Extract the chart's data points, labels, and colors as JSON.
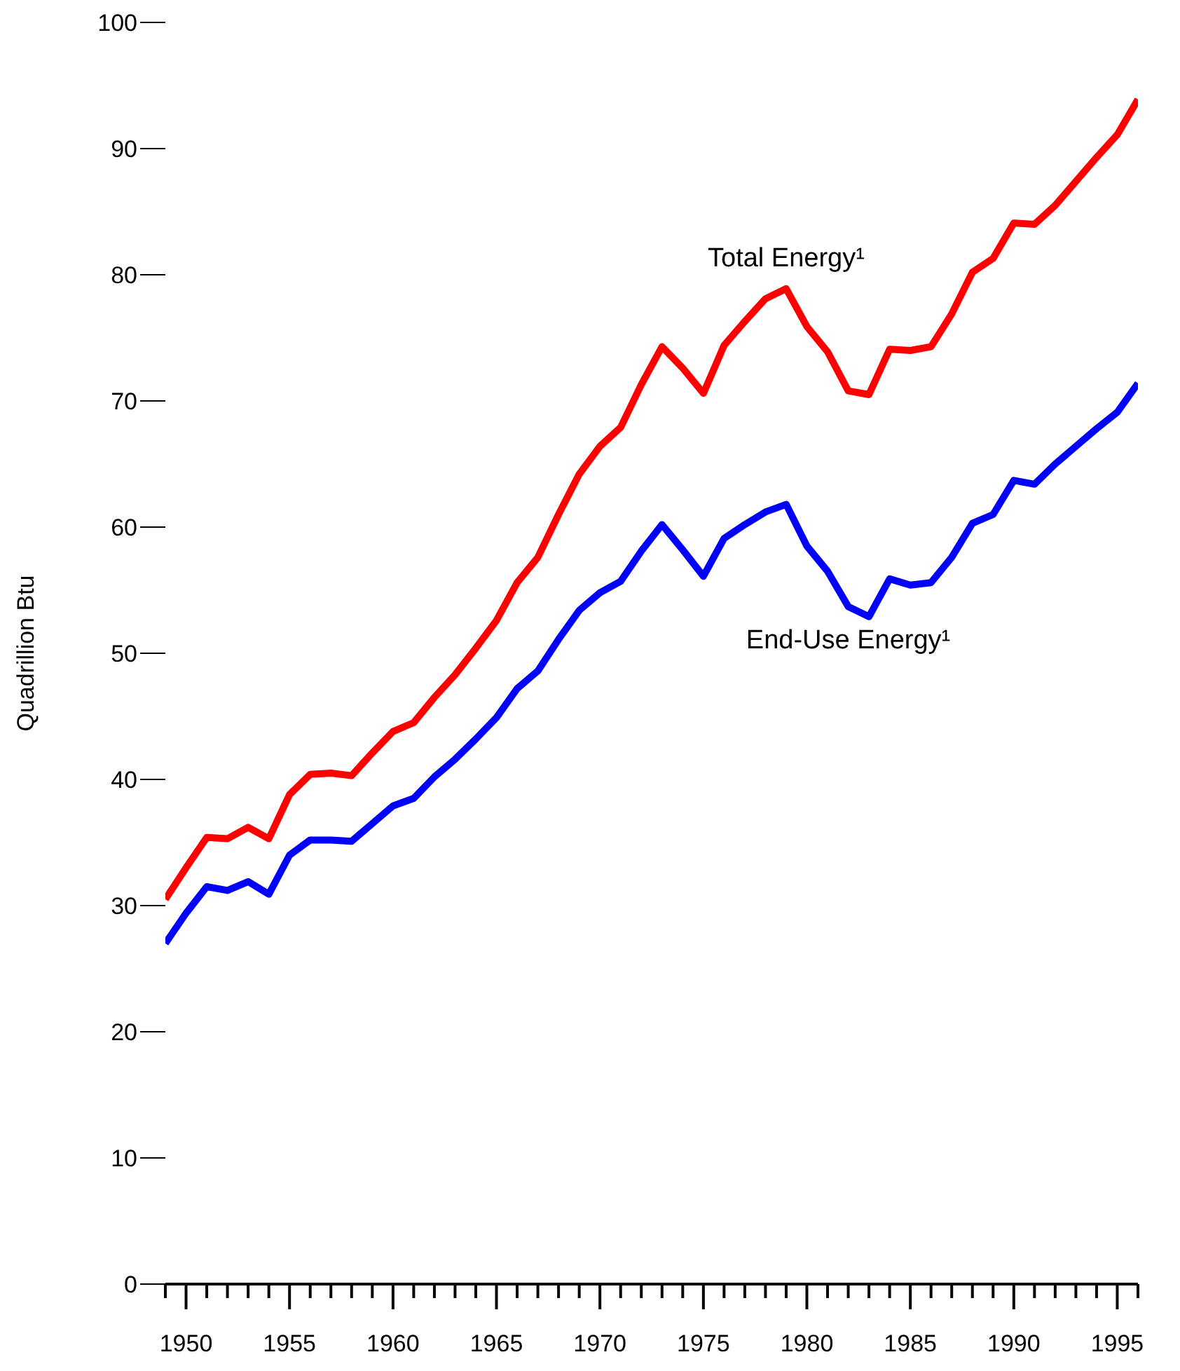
{
  "chart_data": {
    "type": "line",
    "ylabel": "Quadrillion Btu",
    "x": [
      1949,
      1950,
      1951,
      1952,
      1953,
      1954,
      1955,
      1956,
      1957,
      1958,
      1959,
      1960,
      1961,
      1962,
      1963,
      1964,
      1965,
      1966,
      1967,
      1968,
      1969,
      1970,
      1971,
      1972,
      1973,
      1974,
      1975,
      1976,
      1977,
      1978,
      1979,
      1980,
      1981,
      1982,
      1983,
      1984,
      1985,
      1986,
      1987,
      1988,
      1989,
      1990,
      1991,
      1992,
      1993,
      1994,
      1995,
      1996
    ],
    "series": [
      {
        "name": "Total Energy¹",
        "color": "#ff0000",
        "values": [
          30.5,
          33,
          35.4,
          35.3,
          36.2,
          35.3,
          38.8,
          40.4,
          40.5,
          40.3,
          42.1,
          43.8,
          44.5,
          46.5,
          48.3,
          50.4,
          52.6,
          55.6,
          57.6,
          61,
          64.2,
          66.4,
          67.9,
          71.3,
          74.3,
          72.6,
          70.6,
          74.4,
          76.3,
          78.1,
          78.9,
          75.9,
          73.9,
          70.8,
          70.5,
          74.1,
          74,
          74.3,
          76.9,
          80.2,
          81.3,
          84.1,
          84,
          85.5,
          87.4,
          89.3,
          91.1,
          93.9
        ]
      },
      {
        "name": "End-Use Energy¹",
        "color": "#0000ff",
        "values": [
          27,
          29.4,
          31.5,
          31.2,
          31.9,
          30.9,
          34,
          35.2,
          35.2,
          35.1,
          36.5,
          37.9,
          38.5,
          40.2,
          41.6,
          43.2,
          44.9,
          47.2,
          48.6,
          51.1,
          53.4,
          54.8,
          55.7,
          58.1,
          60.2,
          58.2,
          56.1,
          59.1,
          60.2,
          61.2,
          61.8,
          58.5,
          56.5,
          53.7,
          52.9,
          55.9,
          55.4,
          55.6,
          57.6,
          60.3,
          61,
          63.7,
          63.4,
          65,
          66.4,
          67.8,
          69.1,
          71.4
        ]
      }
    ],
    "xlim": [
      1949,
      1996
    ],
    "xticks": [
      {
        "value": 1949,
        "label": null
      },
      1950,
      {
        "value": 1951,
        "label": null
      },
      {
        "value": 1952,
        "label": null
      },
      {
        "value": 1953,
        "label": null
      },
      {
        "value": 1954,
        "label": null
      },
      1955,
      {
        "value": 1956,
        "label": null
      },
      {
        "value": 1957,
        "label": null
      },
      {
        "value": 1958,
        "label": null
      },
      {
        "value": 1959,
        "label": null
      },
      1960,
      {
        "value": 1961,
        "label": null
      },
      {
        "value": 1962,
        "label": null
      },
      {
        "value": 1963,
        "label": null
      },
      {
        "value": 1964,
        "label": null
      },
      1965,
      {
        "value": 1966,
        "label": null
      },
      {
        "value": 1967,
        "label": null
      },
      {
        "value": 1968,
        "label": null
      },
      {
        "value": 1969,
        "label": null
      },
      1970,
      {
        "value": 1971,
        "label": null
      },
      {
        "value": 1972,
        "label": null
      },
      {
        "value": 1973,
        "label": null
      },
      {
        "value": 1974,
        "label": null
      },
      1975,
      {
        "value": 1976,
        "label": null
      },
      {
        "value": 1977,
        "label": null
      },
      {
        "value": 1978,
        "label": null
      },
      {
        "value": 1979,
        "label": null
      },
      1980,
      {
        "value": 1981,
        "label": null
      },
      {
        "value": 1982,
        "label": null
      },
      {
        "value": 1983,
        "label": null
      },
      {
        "value": 1984,
        "label": null
      },
      1985,
      {
        "value": 1986,
        "label": null
      },
      {
        "value": 1987,
        "label": null
      },
      {
        "value": 1988,
        "label": null
      },
      {
        "value": 1989,
        "label": null
      },
      1990,
      {
        "value": 1991,
        "label": null
      },
      {
        "value": 1992,
        "label": null
      },
      {
        "value": 1993,
        "label": null
      },
      {
        "value": 1994,
        "label": null
      },
      1995,
      {
        "value": 1996,
        "label": null
      }
    ],
    "ylim": [
      0,
      100
    ],
    "yticks": [
      0,
      10,
      20,
      30,
      40,
      50,
      60,
      70,
      80,
      90,
      100
    ],
    "grid": false,
    "legend": false,
    "marker": "none",
    "line_style": "solid"
  }
}
